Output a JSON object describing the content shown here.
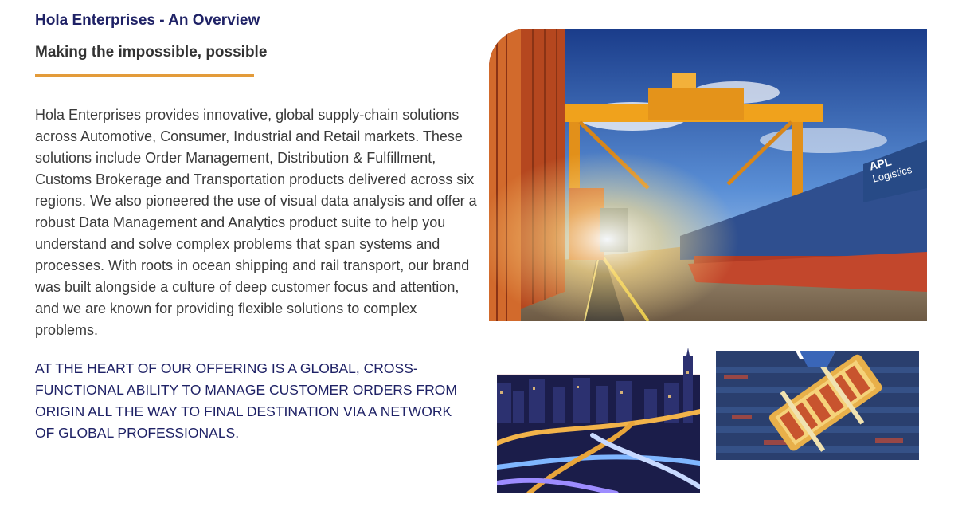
{
  "header": {
    "title": "Hola Enterprises - An Overview",
    "subtitle": "Making the impossible, possible"
  },
  "content": {
    "body": "Hola Enterprises provides innovative, global supply-chain solutions across Automotive, Consumer, Industrial and Retail markets. These solutions include Order Management, Distribution & Fulfillment, Customs Brokerage and Transportation products delivered across six regions. We also pioneered the use of visual data analysis and offer a robust Data Management and Analytics product suite to help you understand and solve complex problems that span systems and processes. With roots in ocean shipping and rail transport, our brand was built alongside a culture of deep customer focus and attention, and we are known for providing flexible solutions to complex problems.",
    "tagline": "AT THE HEART OF OUR OFFERING IS A GLOBAL, CROSS-FUNCTIONAL ABILITY TO MANAGE CUSTOMER ORDERS FROM ORIGIN ALL THE WAY TO FINAL DESTINATION VIA A NETWORK OF GLOBAL PROFESSIONALS."
  },
  "images": {
    "main_sign_line1": "APL",
    "main_sign_line2": "Logistics"
  },
  "colors": {
    "title": "#1f2266",
    "subtitle": "#333333",
    "accent": "#e39b3a",
    "body": "#3a3a3a"
  }
}
